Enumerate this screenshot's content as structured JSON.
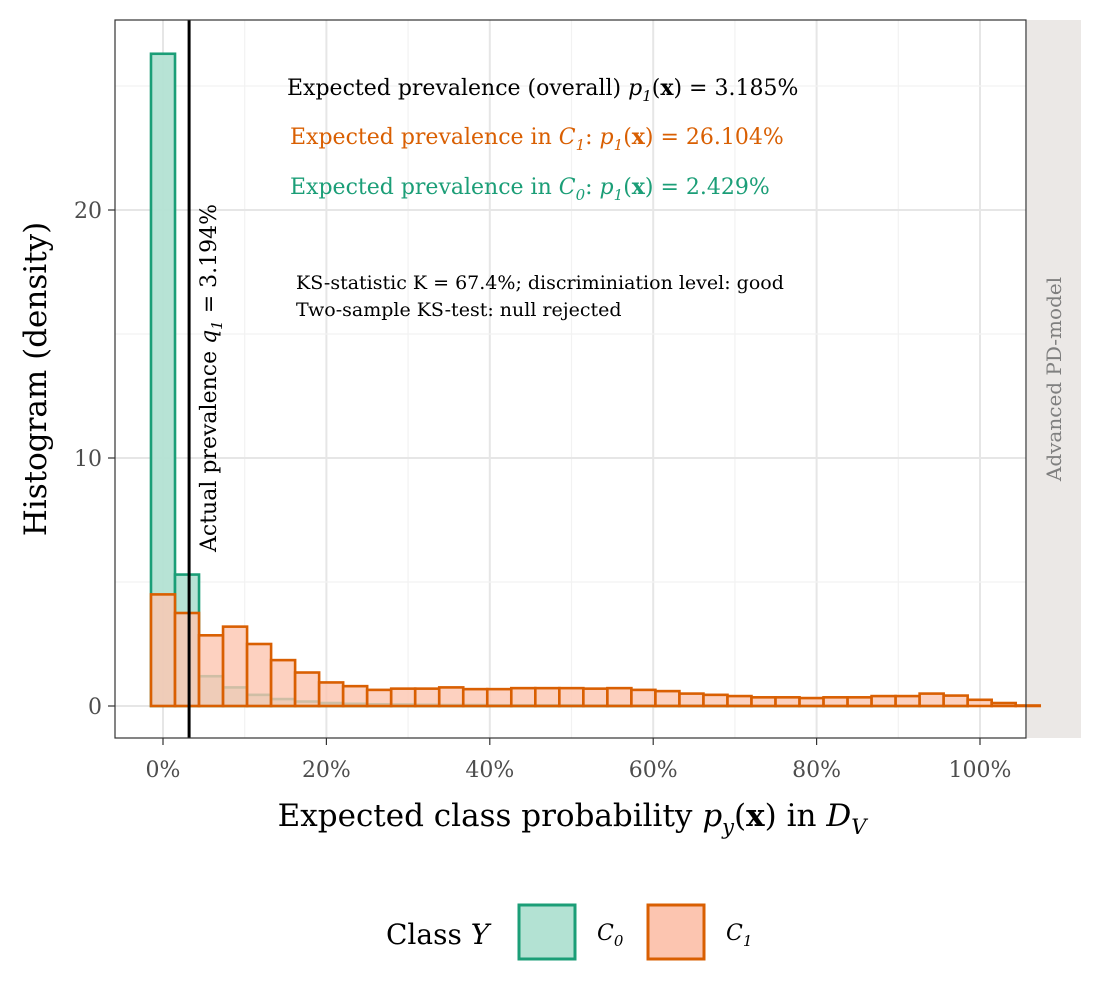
{
  "chart_data": {
    "type": "histogram",
    "xlabel": "Expected class probability p_y(x) in D_V",
    "ylabel": "Histogram (density)",
    "x_ticks": [
      "0%",
      "20%",
      "40%",
      "60%",
      "80%",
      "100%"
    ],
    "y_ticks": [
      "0",
      "10",
      "20"
    ],
    "xlim": [
      -0.06,
      1.06
    ],
    "ylim": [
      -1.3,
      27.7
    ],
    "bin_width": 0.0294,
    "bin_start": -0.0147,
    "series": [
      {
        "name": "C0",
        "color": "#1b9e77",
        "fill": "#b3e2d3",
        "values": [
          26.3,
          5.3,
          1.2,
          0.75,
          0.45,
          0.28,
          0.18,
          0.12,
          0.09,
          0.07,
          0.06,
          0.05,
          0.04,
          0.04,
          0.03,
          0.03,
          0.03,
          0.03,
          0.02,
          0.02,
          0.02,
          0.02,
          0.02,
          0.02,
          0.02,
          0.01,
          0.01,
          0.01,
          0.01,
          0.01,
          0.01,
          0.01,
          0.01,
          0.01,
          0.0
        ]
      },
      {
        "name": "C1",
        "color": "#d95f02",
        "fill": "#fcc5b0",
        "values": [
          4.5,
          3.75,
          2.85,
          3.2,
          2.5,
          1.85,
          1.35,
          0.95,
          0.8,
          0.65,
          0.7,
          0.7,
          0.75,
          0.68,
          0.68,
          0.72,
          0.72,
          0.72,
          0.7,
          0.72,
          0.65,
          0.6,
          0.5,
          0.45,
          0.4,
          0.35,
          0.35,
          0.32,
          0.35,
          0.35,
          0.4,
          0.4,
          0.5,
          0.42,
          0.25,
          0.12,
          0.02
        ]
      }
    ],
    "vline": {
      "x": 0.03194,
      "label": "Actual prevalence q_1 = 3.194%"
    },
    "annotations": {
      "overall": "Expected prevalence (overall) p_1(x) = 3.185%",
      "c1": "Expected prevalence in C_1: p_1(x) = 26.104%",
      "c0": "Expected prevalence in C_0: p_1(x) = 2.429%",
      "ks1": "KS-statistic K = 67.4%; discriminiation level: good",
      "ks2": "Two-sample KS-test: null rejected"
    },
    "facet_label": "Advanced PD-model",
    "legend": {
      "title": "Class Y",
      "items": [
        "C0",
        "C1"
      ],
      "position": "bottom"
    },
    "grid": true
  }
}
